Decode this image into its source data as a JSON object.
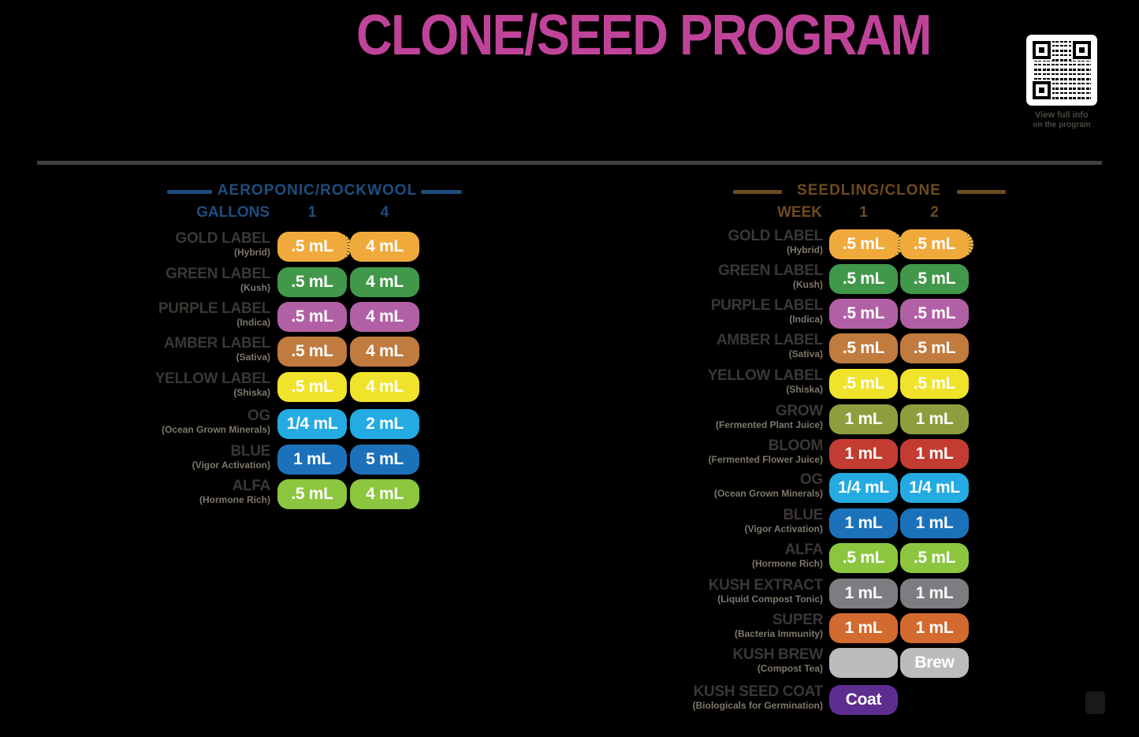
{
  "title": "CLONE/SEED PROGRAM",
  "colors": {
    "title": "#C0439A",
    "left_accent": "#1D4E80",
    "right_accent": "#6F4B20",
    "label": "#3B3734",
    "sublabel": "#7E776C",
    "divider": "#404040"
  },
  "qr": {
    "caption_line1": "View full info",
    "caption_line2": "on the program"
  },
  "left_table": {
    "header": "AEROPONIC/ROCKWOOL",
    "unit_label": "GALLONS",
    "columns": [
      "1",
      "4"
    ],
    "rows": [
      {
        "name": "GOLD LABEL",
        "sub": "(Hybrid)",
        "color": "#F0AA3C",
        "values": [
          ".5 mL",
          "4 mL"
        ],
        "coin": [
          true,
          false
        ]
      },
      {
        "name": "GREEN LABEL",
        "sub": "(Kush)",
        "color": "#41984A",
        "values": [
          ".5 mL",
          "4 mL"
        ]
      },
      {
        "name": "PURPLE LABEL",
        "sub": "(Indica)",
        "color": "#B260A5",
        "values": [
          ".5 mL",
          "4 mL"
        ]
      },
      {
        "name": "AMBER LABEL",
        "sub": "(Sativa)",
        "color": "#C17B3E",
        "values": [
          ".5 mL",
          "4 mL"
        ]
      },
      {
        "name": "YELLOW LABEL",
        "sub": "(Shiska)",
        "color": "#F1E32B",
        "values": [
          ".5 mL",
          "4 mL"
        ]
      },
      {
        "name": "OG",
        "sub": "(Ocean Grown Minerals)",
        "color": "#24ABE2",
        "values": [
          "1/4 mL",
          "2 mL"
        ]
      },
      {
        "name": "BLUE",
        "sub": "(Vigor Activation)",
        "color": "#1C72BA",
        "values": [
          "1 mL",
          "5 mL"
        ]
      },
      {
        "name": "ALFA",
        "sub": "(Hormone Rich)",
        "color": "#8CC63F",
        "values": [
          ".5 mL",
          "4 mL"
        ]
      }
    ]
  },
  "right_table": {
    "header": "SEEDLING/CLONE",
    "unit_label": "WEEK",
    "columns": [
      "1",
      "2"
    ],
    "rows": [
      {
        "name": "GOLD LABEL",
        "sub": "(Hybrid)",
        "color": "#F0AA3C",
        "values": [
          ".5 mL",
          ".5 mL"
        ],
        "coin": [
          true,
          true
        ]
      },
      {
        "name": "GREEN LABEL",
        "sub": "(Kush)",
        "color": "#41984A",
        "values": [
          ".5 mL",
          ".5 mL"
        ]
      },
      {
        "name": "PURPLE LABEL",
        "sub": "(Indica)",
        "color": "#B260A5",
        "values": [
          ".5 mL",
          ".5 mL"
        ]
      },
      {
        "name": "AMBER LABEL",
        "sub": "(Sativa)",
        "color": "#C17B3E",
        "values": [
          ".5 mL",
          ".5 mL"
        ]
      },
      {
        "name": "YELLOW LABEL",
        "sub": "(Shiska)",
        "color": "#F1E32B",
        "values": [
          ".5 mL",
          ".5 mL"
        ]
      },
      {
        "name": "GROW",
        "sub": "(Fermented Plant Juice)",
        "color": "#8E9E3E",
        "values": [
          "1 mL",
          "1 mL"
        ]
      },
      {
        "name": "BLOOM",
        "sub": "(Fermented Flower Juice)",
        "color": "#C33C31",
        "values": [
          "1 mL",
          "1 mL"
        ]
      },
      {
        "name": "OG",
        "sub": "(Ocean Grown Minerals)",
        "color": "#24ABE2",
        "values": [
          "1/4 mL",
          "1/4 mL"
        ]
      },
      {
        "name": "BLUE",
        "sub": "(Vigor Activation)",
        "color": "#1C72BA",
        "values": [
          "1 mL",
          "1 mL"
        ]
      },
      {
        "name": "ALFA",
        "sub": "(Hormone Rich)",
        "color": "#8CC63F",
        "values": [
          ".5 mL",
          ".5 mL"
        ]
      },
      {
        "name": "KUSH EXTRACT",
        "sub": "(Liquid Compost Tonic)",
        "color": "#7C7D81",
        "values": [
          "1 mL",
          "1 mL"
        ]
      },
      {
        "name": "SUPER",
        "sub": "(Bacteria Immunity)",
        "color": "#D36A30",
        "values": [
          "1 mL",
          "1 mL"
        ]
      },
      {
        "name": "KUSH BREW",
        "sub": "(Compost Tea)",
        "color": "#BABCBE",
        "values": [
          "",
          "Brew"
        ]
      },
      {
        "name": "KUSH SEED COAT",
        "sub": "(Biologicals for Germination)",
        "color": "#5E2D90",
        "values": [
          "Coat",
          null
        ]
      }
    ]
  }
}
